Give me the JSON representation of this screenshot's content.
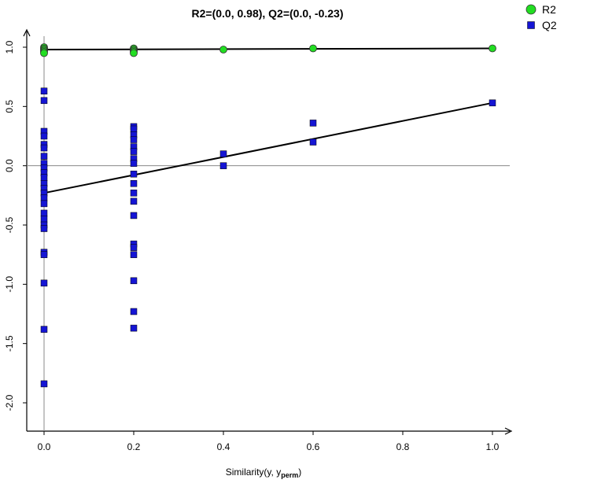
{
  "chart_data": {
    "type": "scatter",
    "title": "R2=(0.0, 0.98), Q2=(0.0, -0.23)",
    "xlabel": {
      "main": "Similarity(y, y",
      "sub": "perm",
      "tail": ")"
    },
    "ylabel": "",
    "xlim": [
      -0.02,
      1.06
    ],
    "ylim": [
      -2.24,
      1.1
    ],
    "x_ticks": [
      {
        "value": 0.0,
        "label": "0.0"
      },
      {
        "value": 0.2,
        "label": "0.2"
      },
      {
        "value": 0.4,
        "label": "0.4"
      },
      {
        "value": 0.6,
        "label": "0.6"
      },
      {
        "value": 0.8,
        "label": "0.8"
      },
      {
        "value": 1.0,
        "label": "1.0"
      }
    ],
    "y_ticks": [
      {
        "value": 1.0,
        "label": "1.0"
      },
      {
        "value": 0.5,
        "label": "0.5"
      },
      {
        "value": 0.0,
        "label": "0.0"
      },
      {
        "value": -0.5,
        "label": "-0.5"
      },
      {
        "value": -1.0,
        "label": "-1.0"
      },
      {
        "value": -1.5,
        "label": "-1.5"
      },
      {
        "value": -2.0,
        "label": "-2.0"
      }
    ],
    "legend_position": "top-right",
    "grid": false,
    "series": [
      {
        "name": "R2",
        "marker": "circle",
        "color": "#22dd22",
        "points": [
          [
            0.0,
            1.0
          ],
          [
            0.0,
            0.99
          ],
          [
            0.0,
            0.98
          ],
          [
            0.0,
            0.97
          ],
          [
            0.0,
            0.96
          ],
          [
            0.0,
            0.95
          ],
          [
            0.2,
            0.99
          ],
          [
            0.2,
            0.98
          ],
          [
            0.2,
            0.97
          ],
          [
            0.2,
            0.96
          ],
          [
            0.2,
            0.95
          ],
          [
            0.4,
            0.98
          ],
          [
            0.6,
            0.99
          ],
          [
            1.0,
            0.99
          ]
        ],
        "regression": {
          "x": [
            0.0,
            1.0
          ],
          "y": [
            0.98,
            0.99
          ]
        }
      },
      {
        "name": "Q2",
        "marker": "square",
        "color": "#1515d4",
        "points": [
          [
            0.0,
            0.63
          ],
          [
            0.0,
            0.55
          ],
          [
            0.0,
            0.29
          ],
          [
            0.0,
            0.25
          ],
          [
            0.0,
            0.18
          ],
          [
            0.0,
            0.15
          ],
          [
            0.0,
            0.08
          ],
          [
            0.0,
            0.02
          ],
          [
            0.0,
            -0.02
          ],
          [
            0.0,
            -0.06
          ],
          [
            0.0,
            -0.1
          ],
          [
            0.0,
            -0.15
          ],
          [
            0.0,
            -0.19
          ],
          [
            0.0,
            -0.23
          ],
          [
            0.0,
            -0.27
          ],
          [
            0.0,
            -0.32
          ],
          [
            0.0,
            -0.4
          ],
          [
            0.0,
            -0.45
          ],
          [
            0.0,
            -0.5
          ],
          [
            0.0,
            -0.53
          ],
          [
            0.0,
            -0.73
          ],
          [
            0.0,
            -0.75
          ],
          [
            0.0,
            -0.99
          ],
          [
            0.0,
            -1.38
          ],
          [
            0.0,
            -1.84
          ],
          [
            0.2,
            0.33
          ],
          [
            0.2,
            0.31
          ],
          [
            0.2,
            0.26
          ],
          [
            0.2,
            0.22
          ],
          [
            0.2,
            0.16
          ],
          [
            0.2,
            0.12
          ],
          [
            0.2,
            0.06
          ],
          [
            0.2,
            0.02
          ],
          [
            0.2,
            -0.07
          ],
          [
            0.2,
            -0.15
          ],
          [
            0.2,
            -0.23
          ],
          [
            0.2,
            -0.3
          ],
          [
            0.2,
            -0.42
          ],
          [
            0.2,
            -0.66
          ],
          [
            0.2,
            -0.69
          ],
          [
            0.2,
            -0.75
          ],
          [
            0.2,
            -0.97
          ],
          [
            0.2,
            -1.23
          ],
          [
            0.2,
            -1.37
          ],
          [
            0.4,
            0.1
          ],
          [
            0.4,
            0.0
          ],
          [
            0.6,
            0.36
          ],
          [
            0.6,
            0.2
          ],
          [
            1.0,
            0.53
          ]
        ],
        "regression": {
          "x": [
            0.0,
            1.0
          ],
          "y": [
            -0.23,
            0.53
          ]
        }
      }
    ]
  }
}
